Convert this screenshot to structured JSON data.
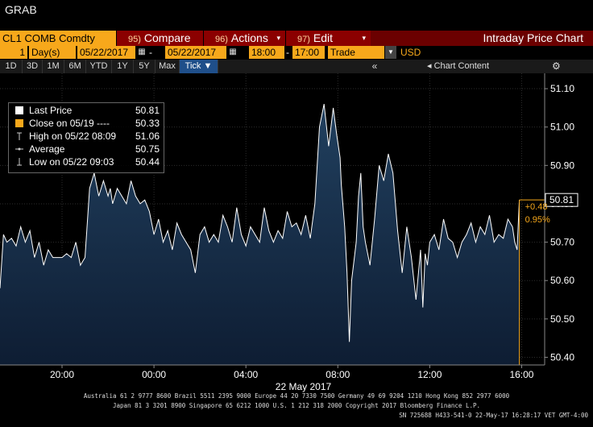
{
  "app": {
    "title": "GRAB"
  },
  "toolbar": {
    "ticker": "CL1 COMB Comdty",
    "compare": {
      "num": "95)",
      "label": "Compare"
    },
    "actions": {
      "num": "96)",
      "label": "Actions"
    },
    "edit": {
      "num": "97)",
      "label": "Edit"
    },
    "chart_title": "Intraday Price Chart"
  },
  "params": {
    "interval_count": "1",
    "interval_unit": "Day(s)",
    "start_date": "05/22/2017",
    "end_date": "05/22/2017",
    "start_time": "18:00",
    "end_time": "17:00",
    "field": "Trade",
    "currency": "USD",
    "date_sep": "-"
  },
  "periods": [
    "1D",
    "3D",
    "1M",
    "6M",
    "YTD",
    "1Y",
    "5Y",
    "Max",
    "Tick ▼"
  ],
  "chart_content": {
    "collapse_icon": "«",
    "label": "Chart Content",
    "settings_icon": "⚙"
  },
  "legend": [
    {
      "label": "Last Price",
      "value": "50.81",
      "symbol": "white-square"
    },
    {
      "label": "Close on 05/19 ----",
      "value": "50.33",
      "symbol": "orange-square"
    },
    {
      "label": "High on 05/22 08:09",
      "value": "51.06",
      "symbol": "high-marker"
    },
    {
      "label": "Average",
      "value": "50.75",
      "symbol": "average-marker"
    },
    {
      "label": "Low on 05/22 09:03",
      "value": "50.44",
      "symbol": "low-marker"
    }
  ],
  "colors": {
    "accent": "#f7a81b",
    "menu_bg": "#8b0000",
    "area_top": "#203a5c",
    "area_bottom": "#0d1b30",
    "change": "#f7a81b"
  },
  "chart_data": {
    "type": "area",
    "title": "",
    "xlabel": "22 May 2017",
    "ylabel": "",
    "x_ticks": [
      "20:00",
      "00:00",
      "04:00",
      "08:00",
      "12:00",
      "16:00"
    ],
    "y_ticks": [
      51.1,
      51.0,
      50.9,
      50.8,
      50.7,
      50.6,
      50.5,
      50.4
    ],
    "ylim": [
      50.38,
      51.14
    ],
    "x_range_hours": [
      17.3,
      41.0
    ],
    "last_price_label": "50.81",
    "change_label": "+0.48",
    "change_pct_label": "0.95%",
    "series": [
      {
        "name": "Last Price",
        "x_hours": [
          17.3,
          17.45,
          17.6,
          17.8,
          18.0,
          18.2,
          18.4,
          18.6,
          18.8,
          19.0,
          19.2,
          19.4,
          19.6,
          19.8,
          20.0,
          20.2,
          20.4,
          20.6,
          20.8,
          21.0,
          21.2,
          21.4,
          21.6,
          21.8,
          22.0,
          22.1,
          22.2,
          22.4,
          22.6,
          22.8,
          23.0,
          23.2,
          23.4,
          23.6,
          23.8,
          24.0,
          24.2,
          24.4,
          24.6,
          24.8,
          25.0,
          25.2,
          25.4,
          25.6,
          25.8,
          26.0,
          26.2,
          26.4,
          26.6,
          26.8,
          27.0,
          27.2,
          27.4,
          27.6,
          27.8,
          28.0,
          28.2,
          28.4,
          28.6,
          28.8,
          29.0,
          29.2,
          29.4,
          29.6,
          29.8,
          30.0,
          30.2,
          30.4,
          30.6,
          30.8,
          31.0,
          31.2,
          31.4,
          31.6,
          31.8,
          31.95,
          32.1,
          32.15,
          32.3,
          32.4,
          32.5,
          32.6,
          32.8,
          32.9,
          33.0,
          33.1,
          33.2,
          33.4,
          33.6,
          33.8,
          34.0,
          34.2,
          34.4,
          34.6,
          34.8,
          35.0,
          35.2,
          35.4,
          35.6,
          35.7,
          35.8,
          35.9,
          36.0,
          36.2,
          36.4,
          36.6,
          36.8,
          37.0,
          37.2,
          37.4,
          37.6,
          37.8,
          38.0,
          38.2,
          38.4,
          38.6,
          38.8,
          39.0,
          39.2,
          39.4,
          39.6,
          39.7,
          39.8,
          39.9
        ],
        "values": [
          50.58,
          50.72,
          50.7,
          50.71,
          50.69,
          50.74,
          50.7,
          50.73,
          50.66,
          50.7,
          50.64,
          50.68,
          50.66,
          50.66,
          50.66,
          50.67,
          50.66,
          50.7,
          50.64,
          50.66,
          50.84,
          50.88,
          50.82,
          50.86,
          50.82,
          50.84,
          50.8,
          50.84,
          50.82,
          50.8,
          50.86,
          50.82,
          50.8,
          50.81,
          50.78,
          50.72,
          50.76,
          50.7,
          50.73,
          50.68,
          50.75,
          50.72,
          50.7,
          50.68,
          50.62,
          50.72,
          50.74,
          50.7,
          50.72,
          50.7,
          50.77,
          50.74,
          50.7,
          50.79,
          50.72,
          50.69,
          50.74,
          50.72,
          50.7,
          50.79,
          50.73,
          50.7,
          50.73,
          50.71,
          50.78,
          50.74,
          50.75,
          50.72,
          50.77,
          50.71,
          50.8,
          51.0,
          51.06,
          50.95,
          51.05,
          50.98,
          50.92,
          50.85,
          50.74,
          50.62,
          50.44,
          50.6,
          50.7,
          50.82,
          50.88,
          50.74,
          50.7,
          50.64,
          50.76,
          50.9,
          50.86,
          50.93,
          50.88,
          50.73,
          50.62,
          50.74,
          50.66,
          50.55,
          50.68,
          50.53,
          50.67,
          50.64,
          50.7,
          50.72,
          50.68,
          50.76,
          50.71,
          50.7,
          50.66,
          50.7,
          50.72,
          50.75,
          50.7,
          50.74,
          50.72,
          50.77,
          50.7,
          50.72,
          50.71,
          50.76,
          50.74,
          50.7,
          50.68,
          50.81
        ]
      }
    ]
  },
  "footer": {
    "line1": "Australia 61 2 9777 8600 Brazil 5511 2395 9000 Europe 44 20 7330 7500 Germany 49 69 9204 1210 Hong Kong 852 2977 6000",
    "line2": "Japan 81 3 3201 8900      Singapore 65 6212 1000      U.S. 1 212 318 2000            Copyright 2017 Bloomberg Finance L.P.",
    "line3": "SN 725688 H433-541-0 22-May-17 16:28:17 VET  GMT-4:00"
  }
}
